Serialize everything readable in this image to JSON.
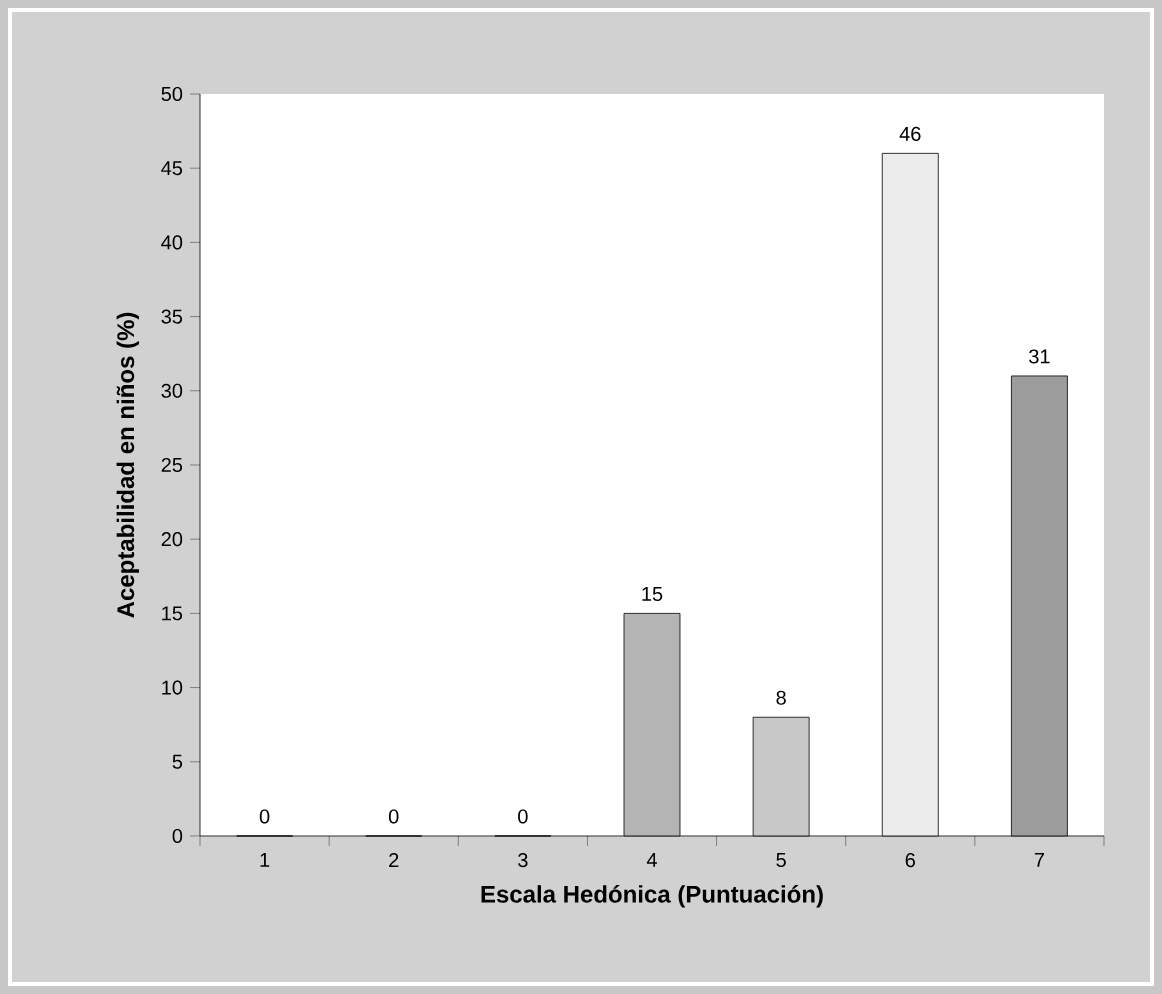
{
  "chart_data": {
    "type": "bar",
    "xlabel": "Escala Hedónica (Puntuación)",
    "ylabel": "Aceptabilidad en niños (%)",
    "categories": [
      "1",
      "2",
      "3",
      "4",
      "5",
      "6",
      "7"
    ],
    "values": [
      0,
      0,
      0,
      15,
      8,
      46,
      31
    ],
    "colors": [
      "#ffffff",
      "#ffffff",
      "#ffffff",
      "#b4b4b4",
      "#c8c8c8",
      "#ececec",
      "#9c9c9c"
    ],
    "ylim": [
      0,
      50
    ],
    "yticks": [
      0,
      5,
      10,
      15,
      20,
      25,
      30,
      35,
      40,
      45,
      50
    ],
    "data_labels": true,
    "grid": false
  }
}
